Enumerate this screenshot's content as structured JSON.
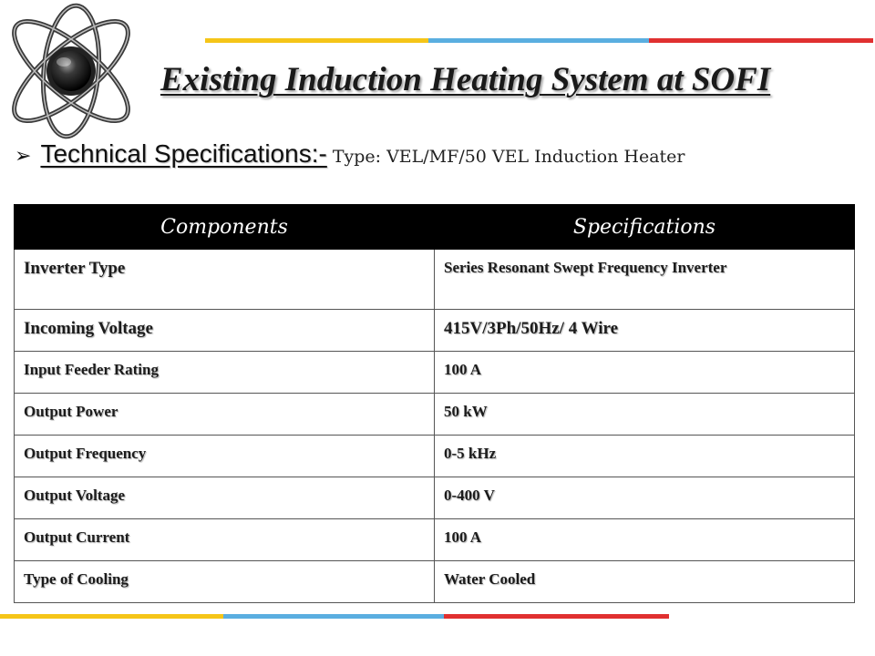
{
  "title": "Existing Induction Heating System at SOFI",
  "section": {
    "heading": "Technical Specifications:- ",
    "type_text": "Type: VEL/MF/50 VEL Induction Heater"
  },
  "table": {
    "headers": {
      "components": "Components",
      "specifications": "Specifications"
    },
    "rows": [
      {
        "component": "Inverter Type",
        "specification": "Series Resonant Swept Frequency Inverter"
      },
      {
        "component": "Incoming Voltage",
        "specification": "415V/3Ph/50Hz/ 4 Wire"
      },
      {
        "component": "Input Feeder Rating",
        "specification": "100 A"
      },
      {
        "component": "Output Power",
        "specification": "50 kW"
      },
      {
        "component": "Output Frequency",
        "specification": "0-5 kHz"
      },
      {
        "component": "Output Voltage",
        "specification": "0-400 V"
      },
      {
        "component": "Output Current",
        "specification": "100 A"
      },
      {
        "component": "Type of Cooling",
        "specification": "Water Cooled"
      }
    ]
  },
  "decoration": {
    "stripe_colors": [
      "#f5c518",
      "#5aaee0",
      "#e03030"
    ],
    "logo_icon": "atom-icon"
  }
}
